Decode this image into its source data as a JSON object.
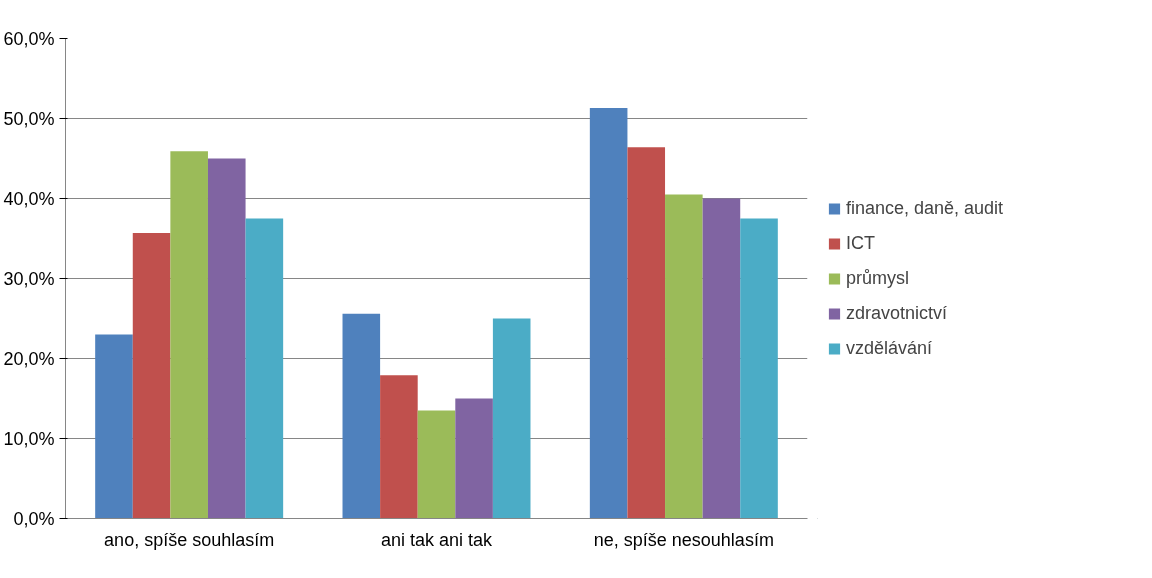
{
  "chart_data": {
    "type": "bar",
    "categories": [
      "ano, spíše souhlasím",
      "ani tak ani tak",
      "ne, spíše nesouhlasím"
    ],
    "series": [
      {
        "name": "finance, daně, audit",
        "color": "#4f81bd",
        "values": [
          23.0,
          25.6,
          51.3
        ]
      },
      {
        "name": "ICT",
        "color": "#c0504d",
        "values": [
          35.7,
          17.9,
          46.4
        ]
      },
      {
        "name": "průmysl",
        "color": "#9bbb59",
        "values": [
          45.9,
          13.5,
          40.5
        ]
      },
      {
        "name": "zdravotnictví",
        "color": "#8064a2",
        "values": [
          45.0,
          15.0,
          40.0
        ]
      },
      {
        "name": "vzdělávání",
        "color": "#4bacc6",
        "values": [
          37.5,
          25.0,
          37.5
        ]
      }
    ],
    "ylim": [
      0,
      60
    ],
    "yticks": [
      {
        "value": 0,
        "label": "0,0%"
      },
      {
        "value": 10,
        "label": "10,0%"
      },
      {
        "value": 20,
        "label": "20,0%"
      },
      {
        "value": 30,
        "label": "30,0%"
      },
      {
        "value": 40,
        "label": "40,0%"
      },
      {
        "value": 50,
        "label": "50,0%"
      },
      {
        "value": 60,
        "label": "60,0%"
      }
    ],
    "grid": "y",
    "legend": "right"
  }
}
